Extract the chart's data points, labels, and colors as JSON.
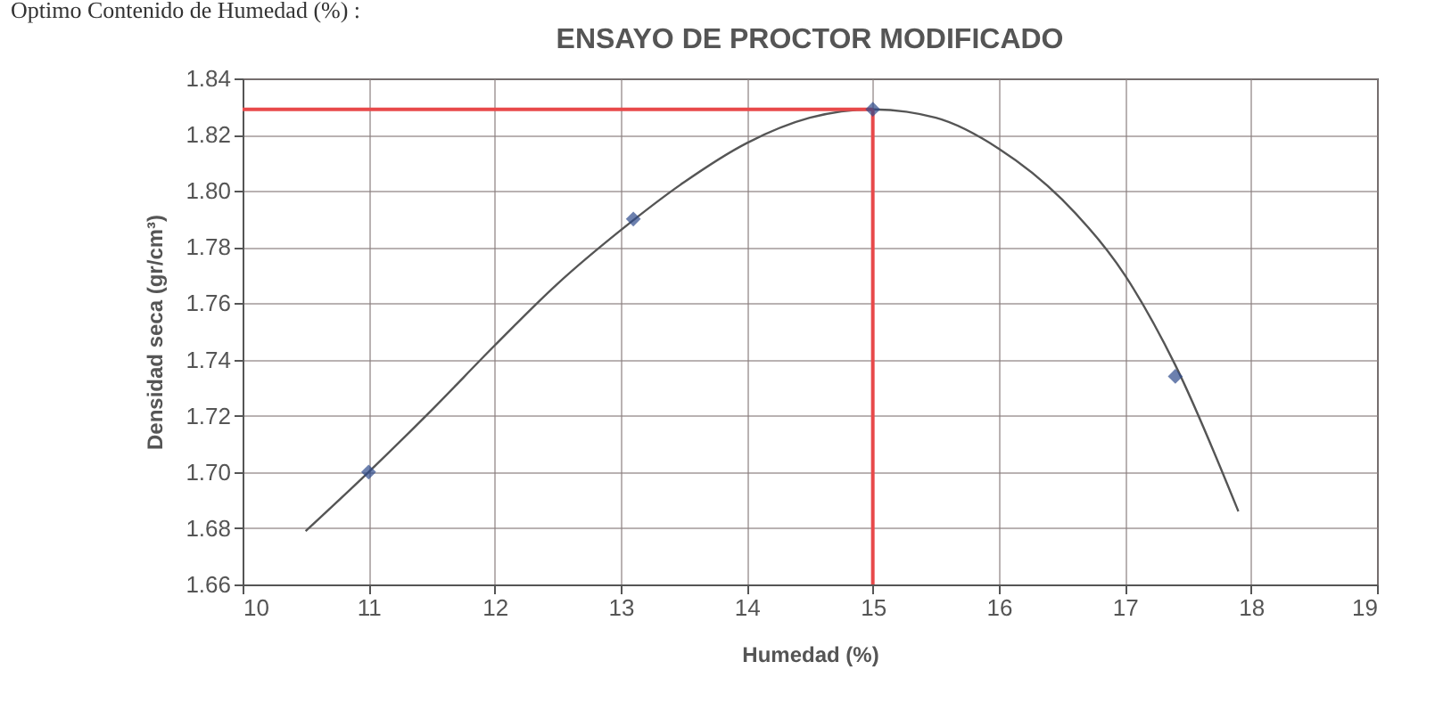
{
  "chart_data": {
    "type": "scatter",
    "title": "ENSAYO DE PROCTOR MODIFICADO",
    "xlabel": "Humedad (%)",
    "ylabel": "Densidad seca (gr/cm³)",
    "annotations": [
      "Optimo Contenido de Humedad (%) :"
    ],
    "series": [
      {
        "color": "#2e4a8c",
        "marker": "diamond",
        "x": [
          11,
          13.1,
          15,
          17.4
        ],
        "values": [
          1.7,
          1.79,
          1.829,
          1.734
        ]
      },
      {
        "type": "line",
        "color": "#555555",
        "marker": "none",
        "x": [
          10.5,
          11,
          11.5,
          12,
          12.5,
          13,
          13.5,
          14,
          14.5,
          15,
          15.5,
          16,
          16.5,
          17,
          17.4,
          17.9
        ],
        "values": [
          1.679,
          1.7,
          1.722,
          1.745,
          1.767,
          1.786,
          1.803,
          1.817,
          1.826,
          1.829,
          1.826,
          1.815,
          1.797,
          1.77,
          1.738,
          1.686
        ]
      }
    ],
    "ref_lines": [
      {
        "axis": "y",
        "value": 1.829,
        "color": "#e8494a"
      },
      {
        "axis": "x",
        "value": 15,
        "color": "#e8494a"
      }
    ],
    "xlim": [
      10,
      19
    ],
    "xticks": [
      10,
      11,
      12,
      13,
      14,
      15,
      16,
      17,
      18,
      19
    ],
    "ylim": [
      1.66,
      1.84
    ],
    "yticks": [
      1.66,
      1.68,
      {
        "value": 1.7,
        "label": "1.70"
      },
      1.72,
      1.74,
      1.76,
      1.78,
      {
        "value": 1.8,
        "label": "1.80"
      },
      1.82,
      1.84
    ],
    "grid": true
  }
}
